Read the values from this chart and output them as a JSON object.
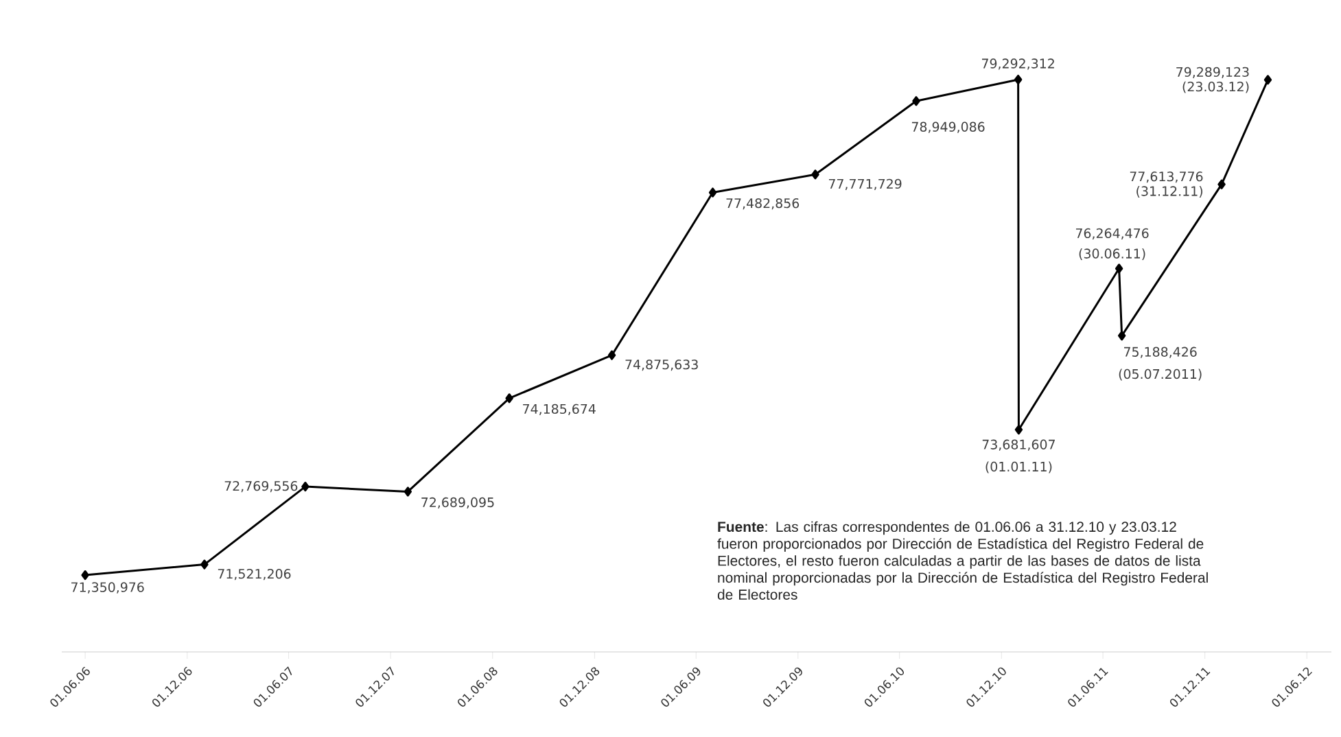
{
  "chart_data": {
    "type": "line",
    "x": [
      "2006-06-01",
      "2007-01-01",
      "2007-07-01",
      "2008-01-01",
      "2008-07-01",
      "2009-01-01",
      "2009-07-01",
      "2010-01-01",
      "2010-07-01",
      "2010-12-31",
      "2011-01-01",
      "2011-06-30",
      "2011-07-05",
      "2011-12-31",
      "2012-03-23"
    ],
    "series": [
      {
        "color": "#000000",
        "values": [
          71350976,
          71521206,
          72769556,
          72689095,
          74185674,
          74875633,
          77482856,
          77771729,
          78949086,
          79292312,
          73681607,
          76264476,
          75188426,
          77613776,
          79289123
        ],
        "value_labels": [
          "71,350,976",
          "71,521,206",
          "72,769,556",
          "72,689,095",
          "74,185,674",
          "74,875,633",
          "77,482,856",
          "77,771,729",
          "78,949,086",
          "79,292,312",
          "73,681,607",
          "76,264,476",
          "75,188,426",
          "77,613,776",
          "79,289,123"
        ]
      }
    ],
    "marker": "diamond",
    "line_style": "solid",
    "xlim": [
      "2006-04-20",
      "2012-07-15"
    ],
    "xticks": [
      {
        "value": "2006-06-01",
        "label": "01.06.06"
      },
      {
        "value": "2006-12-01",
        "label": "01.12.06"
      },
      {
        "value": "2007-06-01",
        "label": "01.06.07"
      },
      {
        "value": "2007-12-01",
        "label": "01.12.07"
      },
      {
        "value": "2008-06-01",
        "label": "01.06.08"
      },
      {
        "value": "2008-12-01",
        "label": "01.12.08"
      },
      {
        "value": "2009-06-01",
        "label": "01.06.09"
      },
      {
        "value": "2009-12-01",
        "label": "01.12.09"
      },
      {
        "value": "2010-06-01",
        "label": "01.06.10"
      },
      {
        "value": "2010-12-01",
        "label": "01.12.10"
      },
      {
        "value": "2011-06-01",
        "label": "01.06.11"
      },
      {
        "value": "2011-12-01",
        "label": "01.12.11"
      },
      {
        "value": "2012-06-01",
        "label": "01.06.12"
      }
    ],
    "tick_labels": "x",
    "annotations": [
      {
        "text": "(01.01.11)",
        "x": "2011-01-01",
        "y": 73681607
      },
      {
        "text": "(30.06.11)",
        "x": "2011-06-30",
        "y": 76264476
      },
      {
        "text": "(05.07.2011)",
        "x": "2011-07-05",
        "y": 75188426
      },
      {
        "text": "(31.12.11)",
        "x": "2011-12-31",
        "y": 77613776
      },
      {
        "text": "(23.03.12)",
        "x": "2012-03-23",
        "y": 79289123
      },
      "**Fuente**:  Las cifras correspondentes de 01.06.06 a 31.12.10 y 23.03.12 fueron proporcionados por Dirección de Estadística del Registro Federal de Electores, el resto fueron calculadas a partir de las bases de datos de lista nominal proporcionadas por la Dirección de Estadística del Registro Federal de Electores"
    ]
  }
}
